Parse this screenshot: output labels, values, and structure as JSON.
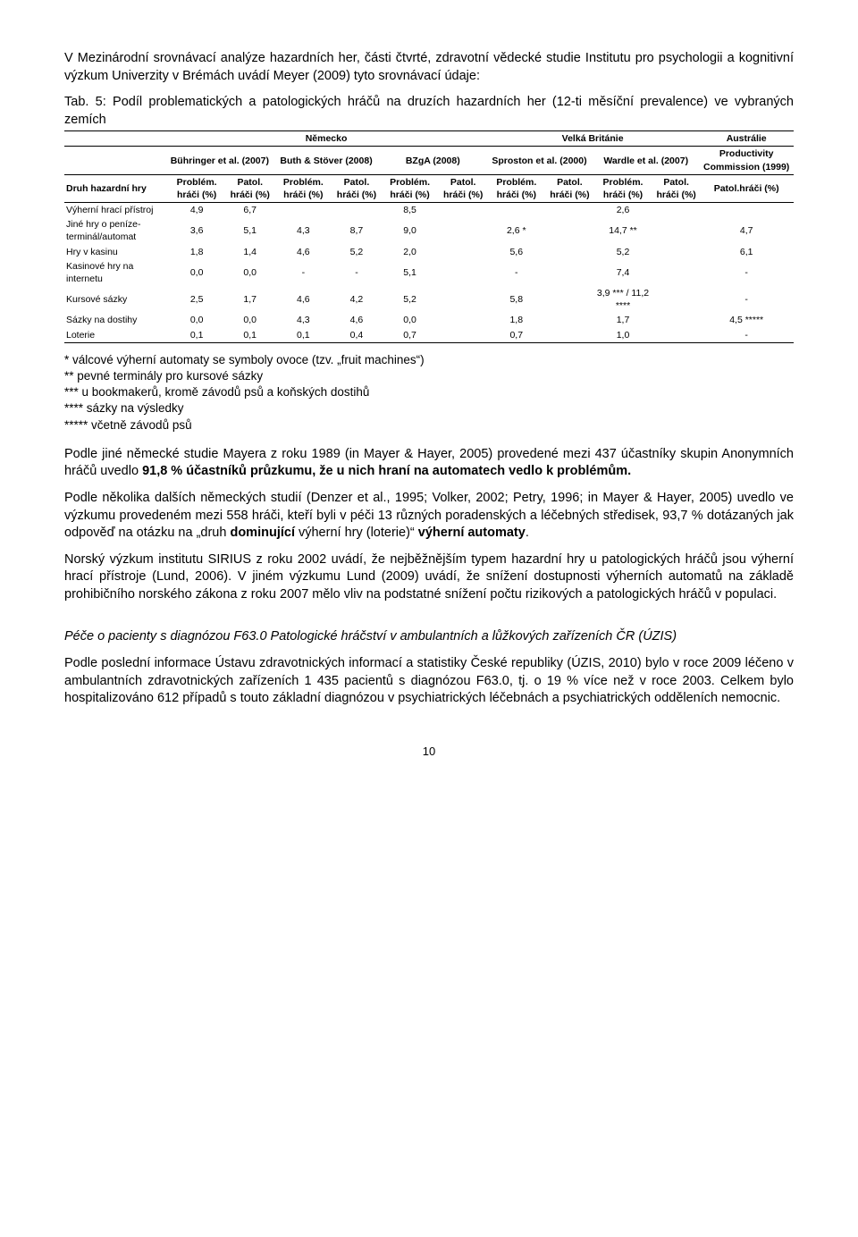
{
  "intro": "V Mezinárodní srovnávací analýze hazardních her, části čtvrté, zdravotní vědecké studie Institutu pro psychologii a kognitivní výzkum Univerzity v Brémách uvádí Meyer (2009) tyto srovnávací údaje:",
  "tabLabel": "Tab. 5: Podíl problematických a patologických hráčů na druzích hazardních her (12-ti měsíční prevalence) ve vybraných zemích",
  "countries": {
    "de": "Německo",
    "uk": "Velká Británie",
    "au": "Austrálie"
  },
  "studies": {
    "s1": "Bühringer et al. (2007)",
    "s2": "Buth & Stöver (2008)",
    "s3": "BZgA (2008)",
    "s4": "Sproston et al. (2000)",
    "s5": "Wardle et al. (2007)",
    "s6": "Productivity Commission (1999)"
  },
  "colHead": {
    "prob": "Problém. hráči (%)",
    "pat": "Patol. hráči (%)",
    "pat2": "Patol.hráči (%)"
  },
  "rowHead": "Druh hazardní hry",
  "rows": [
    {
      "label": "Výherní hrací přístroj",
      "v": [
        "4,9",
        "6,7",
        "",
        "",
        "8,5",
        "",
        "",
        "",
        "2,6",
        "",
        ""
      ]
    },
    {
      "label": "Jiné hry o peníze- terminál/automat",
      "v": [
        "3,6",
        "5,1",
        "4,3",
        "8,7",
        "9,0",
        "",
        "2,6 *",
        "",
        "14,7 **",
        "",
        "4,7"
      ]
    },
    {
      "label": "Hry v kasinu",
      "v": [
        "1,8",
        "1,4",
        "4,6",
        "5,2",
        "2,0",
        "",
        "5,6",
        "",
        "5,2",
        "",
        "6,1"
      ]
    },
    {
      "label": "Kasinové hry na internetu",
      "v": [
        "0,0",
        "0,0",
        "-",
        "-",
        "5,1",
        "",
        "-",
        "",
        "7,4",
        "",
        "-"
      ]
    },
    {
      "label": "Kursové sázky",
      "v": [
        "2,5",
        "1,7",
        "4,6",
        "4,2",
        "5,2",
        "",
        "5,8",
        "",
        "3,9 *** / 11,2 ****",
        "",
        "-"
      ]
    },
    {
      "label": "Sázky na dostihy",
      "v": [
        "0,0",
        "0,0",
        "4,3",
        "4,6",
        "0,0",
        "",
        "1,8",
        "",
        "1,7",
        "",
        "4,5 *****"
      ]
    },
    {
      "label": "Loterie",
      "v": [
        "0,1",
        "0,1",
        "0,1",
        "0,4",
        "0,7",
        "",
        "0,7",
        "",
        "1,0",
        "",
        "-"
      ]
    }
  ],
  "notes": [
    "* válcové výherní automaty se symboly ovoce (tzv. „fruit machines“)",
    "** pevné terminály pro kursové sázky",
    "*** u bookmakerů, kromě závodů psů a koňských dostihů",
    "**** sázky na výsledky",
    "***** včetně závodů psů"
  ],
  "paras": [
    "Podle jiné německé studie Mayera z roku 1989 (in Mayer & Hayer, 2005) provedené mezi 437 účastníky skupin Anonymních hráčů uvedlo <b>91,8 % účastníků průzkumu, že u nich hraní na automatech vedlo k problémům.</b>",
    "Podle několika dalších německých studií (Denzer et al., 1995; Volker, 2002; Petry, 1996; in Mayer & Hayer, 2005) uvedlo ve výzkumu provedeném mezi 558 hráči, kteří byli v péči 13 různých poradenských a léčebných středisek, 93,7 % dotázaných jak odpověď na otázku na „druh <b>dominující</b> výherní hry (loterie)“ <b>výherní automaty</b>.",
    "Norský výzkum institutu SIRIUS z roku 2002 uvádí, že nejběžnějším typem hazardní hry u patologických hráčů jsou výherní hrací přístroje (Lund, 2006). V jiném výzkumu Lund (2009) uvádí, že snížení dostupnosti výherních automatů na základě prohibičního norského zákona z roku 2007 mělo vliv na podstatné snížení počtu rizikových a patologických hráčů v populaci."
  ],
  "sectionTitle": "Péče o pacienty s diagnózou F63.0 Patologické hráčství v ambulantních a lůžkových zařízeních ČR (ÚZIS)",
  "lastPara": "Podle poslední informace Ústavu zdravotnických informací a statistiky České republiky (ÚZIS, 2010) bylo v roce 2009 léčeno v ambulantních zdravotnických zařízeních 1 435 pacientů s diagnózou F63.0, tj. o 19 % více než v roce 2003. Celkem bylo hospitalizováno 612 případů s touto základní diagnózou v psychiatrických léčebnách a psychiatrických odděleních nemocnic.",
  "pageNum": "10"
}
